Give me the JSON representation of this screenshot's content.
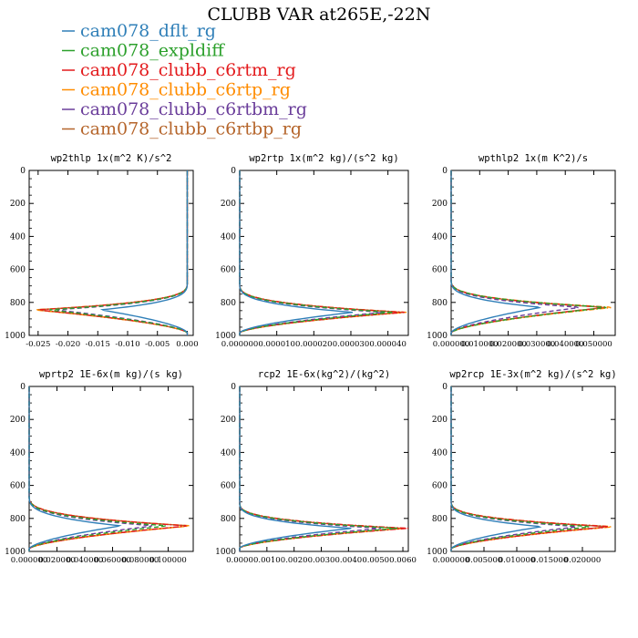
{
  "figure": {
    "title": "CLUBB VAR at265E,-22N"
  },
  "legend": [
    {
      "name": "cam078_dflt_rg",
      "color": "#2f7fb8",
      "dash": "solid"
    },
    {
      "name": "cam078_expldiff",
      "color": "#2ca02c",
      "dash": "dashed"
    },
    {
      "name": "cam078_clubb_c6rtm_rg",
      "color": "#e31a1c",
      "dash": "dashdot"
    },
    {
      "name": "cam078_clubb_c6rtp_rg",
      "color": "#ff8c00",
      "dash": "dashdot"
    },
    {
      "name": "cam078_clubb_c6rtbm_rg",
      "color": "#6a3d9a",
      "dash": "dashed"
    },
    {
      "name": "cam078_clubb_c6rtbp_rg",
      "color": "#b5652b",
      "dash": "solid"
    }
  ],
  "chart_data": [
    {
      "type": "line",
      "title": "wp2thlp  1x(m^2 K)/s^2",
      "xlim": [
        -0.0265,
        0.001
      ],
      "ylim": [
        1000,
        0
      ],
      "yticks": [
        "0",
        "200",
        "400",
        "600",
        "800",
        "1000"
      ],
      "xticks": [
        "-0.025",
        "-0.020",
        "-0.015",
        "-0.010",
        "-0.005",
        "0.000"
      ],
      "profile_shape": {
        "peak_level": 845,
        "top_level": 740,
        "bottom_level": 985
      },
      "series": [
        {
          "name": "cam078_dflt_rg",
          "peak": -0.0145
        },
        {
          "name": "cam078_expldiff",
          "peak": -0.0235
        },
        {
          "name": "cam078_clubb_c6rtm_rg",
          "peak": -0.0252
        },
        {
          "name": "cam078_clubb_c6rtp_rg",
          "peak": -0.0258
        },
        {
          "name": "cam078_clubb_c6rtbm_rg",
          "peak": -0.0222
        },
        {
          "name": "cam078_clubb_c6rtbp_rg",
          "peak": -0.0255
        }
      ]
    },
    {
      "type": "line",
      "title": "wp2rtp  1x(m^2 kg)/(s^2 kg)",
      "xlim": [
        0,
        4.55e-05
      ],
      "ylim": [
        1000,
        0
      ],
      "yticks": [
        "0",
        "200",
        "400",
        "600",
        "800",
        "1000"
      ],
      "xticks": [
        "0.000000",
        "0.000010",
        "0.000020",
        "0.000030",
        "0.000040"
      ],
      "profile_shape": {
        "peak_level": 860,
        "top_level": 745,
        "bottom_level": 985
      },
      "series": [
        {
          "name": "cam078_dflt_rg",
          "peak": 3.05e-05
        },
        {
          "name": "cam078_expldiff",
          "peak": 4.15e-05
        },
        {
          "name": "cam078_clubb_c6rtm_rg",
          "peak": 4.45e-05
        },
        {
          "name": "cam078_clubb_c6rtp_rg",
          "peak": 4.5e-05
        },
        {
          "name": "cam078_clubb_c6rtbm_rg",
          "peak": 3.9e-05
        },
        {
          "name": "cam078_clubb_c6rtbp_rg",
          "peak": 4.42e-05
        }
      ]
    },
    {
      "type": "line",
      "title": "wpthlp2  1x(m K^2)/s",
      "xlim": [
        0,
        0.0575
      ],
      "ylim": [
        1000,
        0
      ],
      "yticks": [
        "0",
        "200",
        "400",
        "600",
        "800",
        "1000"
      ],
      "xticks": [
        "0.000000",
        "0.010000",
        "0.020000",
        "0.030000",
        "0.040000",
        "0.050000"
      ],
      "profile_shape": {
        "peak_level": 830,
        "top_level": 720,
        "bottom_level": 985
      },
      "series": [
        {
          "name": "cam078_dflt_rg",
          "peak": 0.0315
        },
        {
          "name": "cam078_expldiff",
          "peak": 0.0555
        },
        {
          "name": "cam078_clubb_c6rtm_rg",
          "peak": 0.0548
        },
        {
          "name": "cam078_clubb_c6rtp_rg",
          "peak": 0.0572
        },
        {
          "name": "cam078_clubb_c6rtbm_rg",
          "peak": 0.0455
        },
        {
          "name": "cam078_clubb_c6rtbp_rg",
          "peak": 0.0545
        }
      ]
    },
    {
      "type": "line",
      "title": "wprtp2  1E-6x(m kg)/(s kg)",
      "xlim": [
        0,
        0.118
      ],
      "ylim": [
        1000,
        0
      ],
      "yticks": [
        "0",
        "200",
        "400",
        "600",
        "800",
        "1000"
      ],
      "xticks": [
        "0.000000",
        "0.020000",
        "0.040000",
        "0.060000",
        "0.080000",
        "0.100000"
      ],
      "profile_shape": {
        "peak_level": 845,
        "top_level": 720,
        "bottom_level": 985
      },
      "series": [
        {
          "name": "cam078_dflt_rg",
          "peak": 0.066
        },
        {
          "name": "cam078_expldiff",
          "peak": 0.1
        },
        {
          "name": "cam078_clubb_c6rtm_rg",
          "peak": 0.115
        },
        {
          "name": "cam078_clubb_c6rtp_rg",
          "peak": 0.117
        },
        {
          "name": "cam078_clubb_c6rtbm_rg",
          "peak": 0.09
        },
        {
          "name": "cam078_clubb_c6rtbp_rg",
          "peak": 0.116
        }
      ]
    },
    {
      "type": "line",
      "title": "rcp2  1E-6x(kg^2)/(kg^2)",
      "xlim": [
        0,
        0.0062
      ],
      "ylim": [
        1000,
        0
      ],
      "yticks": [
        "0",
        "200",
        "400",
        "600",
        "800",
        "1000"
      ],
      "xticks": [
        "0.0000",
        "0.0010",
        "0.0020",
        "0.0030",
        "0.0040",
        "0.0050",
        "0.0060"
      ],
      "profile_shape": {
        "peak_level": 860,
        "top_level": 760,
        "bottom_level": 980
      },
      "series": [
        {
          "name": "cam078_dflt_rg",
          "peak": 0.0041
        },
        {
          "name": "cam078_expldiff",
          "peak": 0.0058
        },
        {
          "name": "cam078_clubb_c6rtm_rg",
          "peak": 0.0062
        },
        {
          "name": "cam078_clubb_c6rtp_rg",
          "peak": 0.0061
        },
        {
          "name": "cam078_clubb_c6rtbm_rg",
          "peak": 0.0052
        },
        {
          "name": "cam078_clubb_c6rtbp_rg",
          "peak": 0.006
        }
      ]
    },
    {
      "type": "line",
      "title": "wp2rcp  1E-3x(m^2 kg)/(s^2 kg)",
      "xlim": [
        0,
        0.025
      ],
      "ylim": [
        1000,
        0
      ],
      "yticks": [
        "0",
        "200",
        "400",
        "600",
        "800",
        "1000"
      ],
      "xticks": [
        "0.000000",
        "0.005000",
        "0.010000",
        "0.015000",
        "0.020000"
      ],
      "profile_shape": {
        "peak_level": 850,
        "top_level": 750,
        "bottom_level": 985
      },
      "series": [
        {
          "name": "cam078_dflt_rg",
          "peak": 0.0138
        },
        {
          "name": "cam078_expldiff",
          "peak": 0.0215
        },
        {
          "name": "cam078_clubb_c6rtm_rg",
          "peak": 0.0245
        },
        {
          "name": "cam078_clubb_c6rtp_rg",
          "peak": 0.025
        },
        {
          "name": "cam078_clubb_c6rtbm_rg",
          "peak": 0.0195
        },
        {
          "name": "cam078_clubb_c6rtbp_rg",
          "peak": 0.0242
        }
      ]
    }
  ]
}
